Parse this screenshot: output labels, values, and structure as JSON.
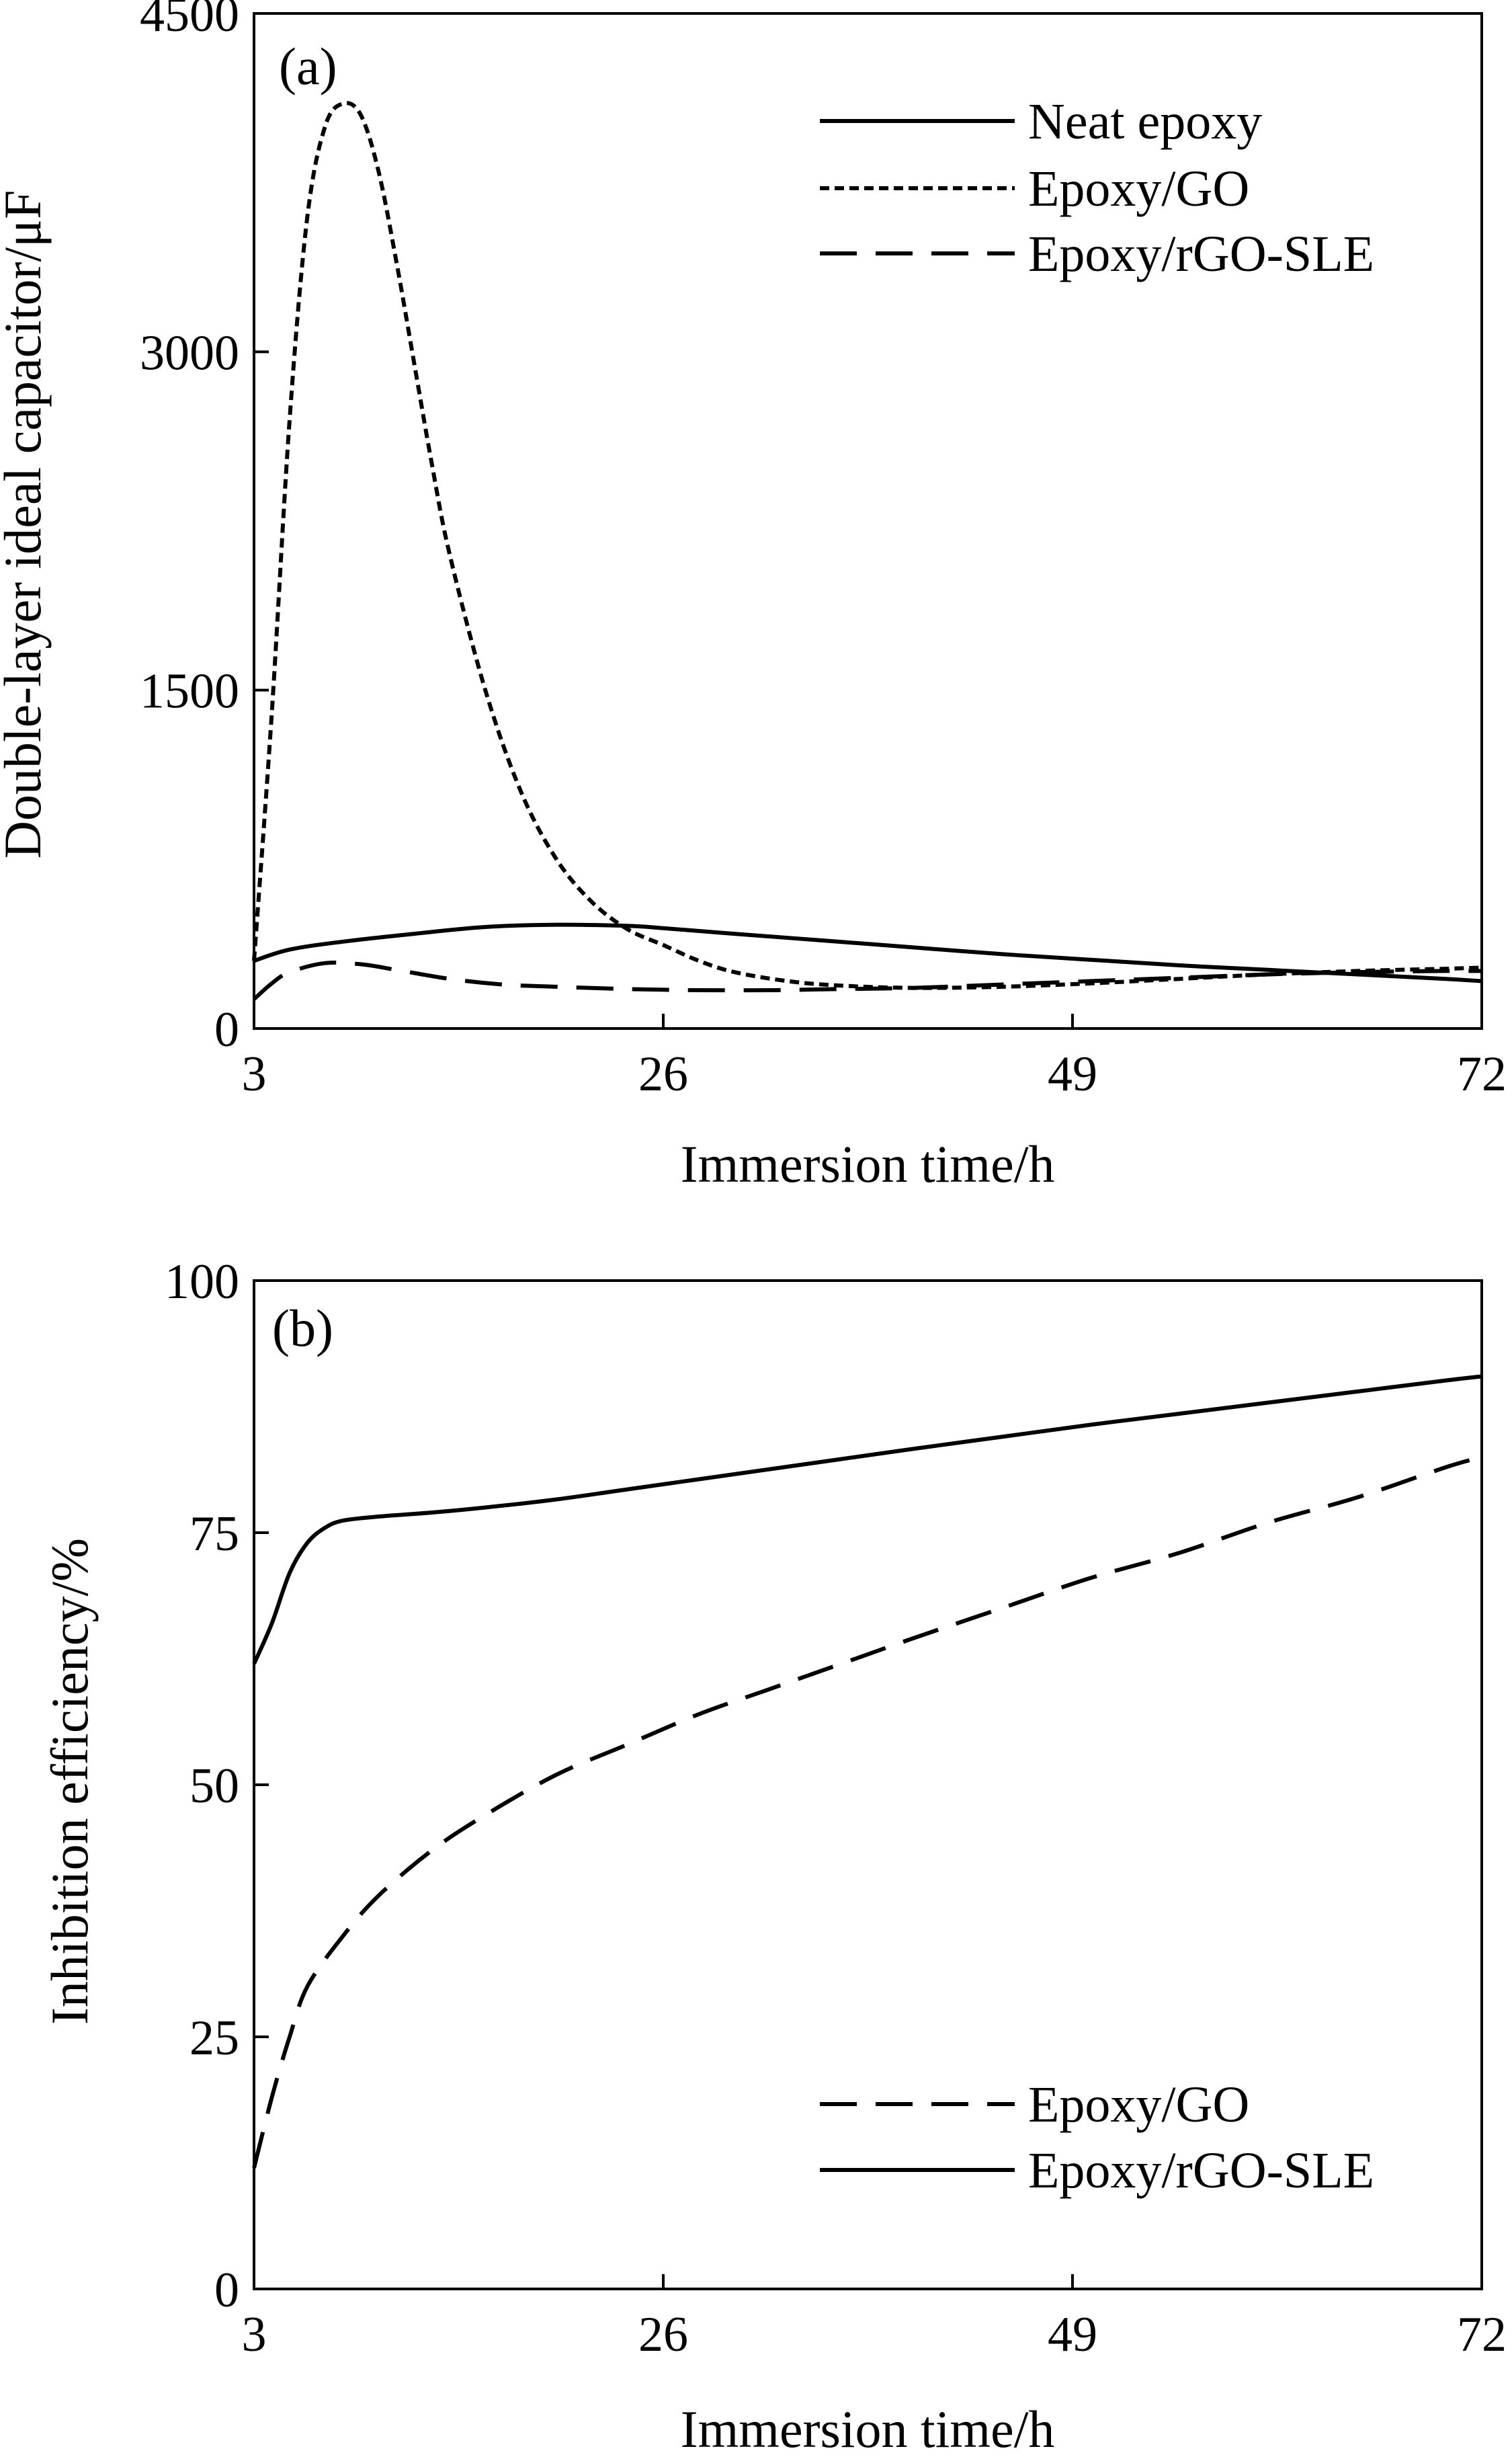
{
  "chart_data": [
    {
      "type": "line",
      "panel_label": "(a)",
      "xlabel": "Immersion time/h",
      "ylabel": "Double-layer ideal capacitor/μF",
      "xlim": [
        3,
        72
      ],
      "ylim": [
        0,
        4500
      ],
      "xticks": [
        "3",
        "26",
        "49",
        "72"
      ],
      "yticks": [
        "0",
        "1500",
        "3000",
        "4500"
      ],
      "legend_position": "top-right",
      "series": [
        {
          "name": "Neat epoxy",
          "style": "solid",
          "x": [
            3,
            5,
            8,
            12,
            16,
            20,
            24,
            26,
            30,
            35,
            40,
            45,
            50,
            55,
            60,
            65,
            70,
            72
          ],
          "y": [
            300,
            350,
            385,
            420,
            450,
            460,
            455,
            445,
            420,
            390,
            360,
            330,
            305,
            280,
            260,
            240,
            220,
            210
          ]
        },
        {
          "name": "Epoxy/GO",
          "style": "dotted",
          "x": [
            3,
            4,
            5,
            6,
            7,
            8,
            9,
            10,
            11,
            12,
            13,
            14,
            16,
            18,
            20,
            22,
            24,
            26,
            28,
            30,
            33,
            36,
            40,
            45,
            50,
            55,
            60,
            65,
            70,
            72
          ],
          "y": [
            300,
            1400,
            2700,
            3600,
            4000,
            4100,
            4050,
            3800,
            3400,
            2950,
            2500,
            2100,
            1500,
            1050,
            750,
            560,
            440,
            370,
            300,
            250,
            210,
            190,
            180,
            185,
            200,
            220,
            240,
            255,
            265,
            270
          ]
        },
        {
          "name": "Epoxy/rGO-SLE",
          "style": "dashed",
          "x": [
            3,
            4,
            5,
            7,
            9,
            11,
            14,
            17,
            20,
            24,
            28,
            32,
            36,
            40,
            45,
            50,
            55,
            60,
            65,
            70,
            72
          ],
          "y": [
            130,
            200,
            250,
            290,
            285,
            260,
            220,
            195,
            185,
            175,
            170,
            170,
            175,
            180,
            195,
            210,
            225,
            240,
            250,
            255,
            255
          ]
        }
      ]
    },
    {
      "type": "line",
      "panel_label": "(b)",
      "xlabel": "Immersion time/h",
      "ylabel": "Inhibition efficiency/%",
      "xlim": [
        3,
        72
      ],
      "ylim": [
        0,
        100
      ],
      "xticks": [
        "3",
        "26",
        "49",
        "72"
      ],
      "yticks": [
        "0",
        "25",
        "50",
        "75",
        "100"
      ],
      "legend_position": "bottom-right",
      "series": [
        {
          "name": "Epoxy/GO",
          "style": "dashed",
          "x": [
            3,
            4,
            5,
            6,
            8,
            10,
            13,
            16,
            20,
            24,
            28,
            32,
            36,
            40,
            45,
            50,
            55,
            60,
            65,
            70,
            72
          ],
          "y": [
            12,
            19,
            25,
            30,
            35,
            39,
            43.5,
            47,
            51,
            54,
            57,
            59.5,
            62,
            64.5,
            67.5,
            70.5,
            73,
            76,
            78.5,
            81.5,
            82.5
          ]
        },
        {
          "name": "Epoxy/rGO-SLE",
          "style": "solid",
          "x": [
            3,
            4,
            5,
            6,
            7,
            8,
            10,
            13,
            16,
            20,
            24,
            28,
            32,
            36,
            40,
            45,
            50,
            55,
            60,
            65,
            70,
            72
          ],
          "y": [
            62,
            66,
            71,
            74,
            75.5,
            76.2,
            76.6,
            77,
            77.5,
            78.3,
            79.3,
            80.3,
            81.3,
            82.3,
            83.3,
            84.5,
            85.7,
            86.8,
            87.9,
            89,
            90.1,
            90.5
          ]
        }
      ]
    }
  ]
}
